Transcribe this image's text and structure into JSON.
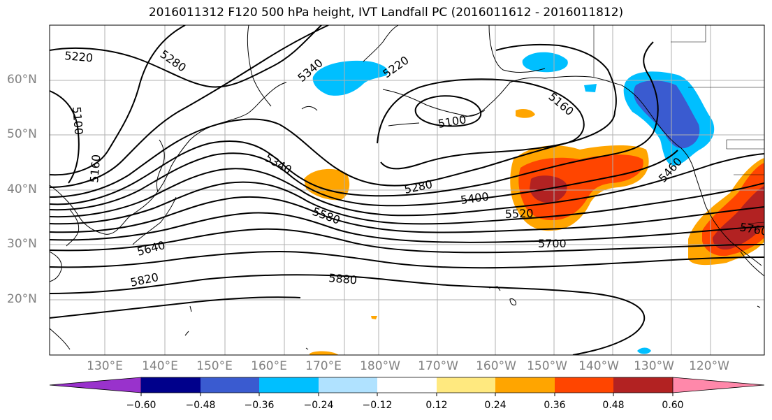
{
  "title": "2016011312 F120 500 hPa height, IVT Landfall PC (2016011612 - 2016011812)",
  "lat_labels": [
    "60°N",
    "50°N",
    "40°N",
    "30°N",
    "20°N"
  ],
  "lon_labels": [
    "130°E",
    "140°E",
    "150°E",
    "160°E",
    "170°E",
    "180°W",
    "170°W",
    "160°W",
    "150°W",
    "140°W",
    "130°W",
    "120°W"
  ],
  "contour_labels": [
    "5220",
    "5280",
    "5340",
    "5220",
    "5100",
    "5160",
    "5100",
    "5160",
    "5340",
    "5280",
    "5400",
    "5520",
    "5580",
    "5460",
    "5640",
    "5700",
    "5760",
    "5820",
    "5880"
  ],
  "colorbar": {
    "tick_labels": [
      "−0.60",
      "−0.48",
      "−0.36",
      "−0.24",
      "−0.12",
      "0.12",
      "0.24",
      "0.36",
      "0.48",
      "0.60"
    ],
    "colors": [
      "#9932cc",
      "#00008b",
      "#3a5bd0",
      "#00bfff",
      "#b0e2ff",
      "#ffffff",
      "#ffe97f",
      "#ffa500",
      "#ff4500",
      "#b22222",
      "#ff88aa"
    ]
  },
  "colors": {
    "gridline": "#b0b0b0",
    "contour": "#000000",
    "coastline": "#000000"
  }
}
